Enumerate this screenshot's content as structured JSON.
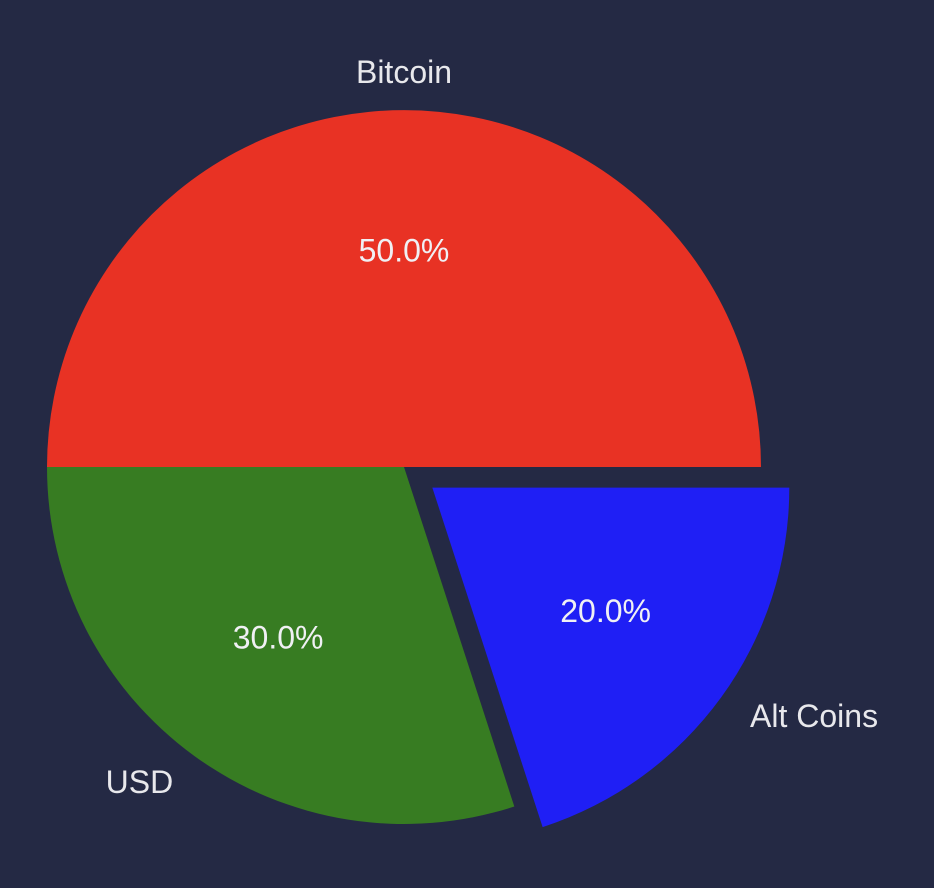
{
  "chart_data": {
    "type": "pie",
    "background": "#242944",
    "start_angle_deg": 0,
    "direction": "counterclockwise",
    "slices": [
      {
        "label": "Bitcoin",
        "value": 50.0,
        "pct_label": "50.0%",
        "color": "#e83224",
        "exploded": false
      },
      {
        "label": "USD",
        "value": 30.0,
        "pct_label": "30.0%",
        "color": "#377c22",
        "exploded": false
      },
      {
        "label": "Alt Coins",
        "value": 20.0,
        "pct_label": "20.0%",
        "color": "#1f1ff5",
        "exploded": true
      }
    ]
  }
}
